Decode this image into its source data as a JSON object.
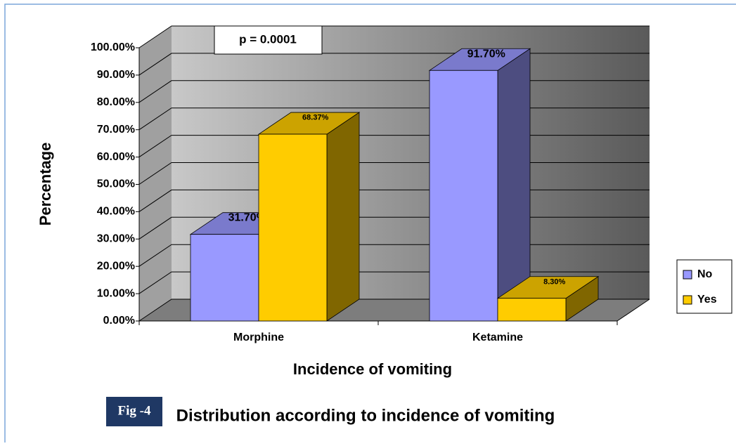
{
  "chart_data": {
    "type": "bar3d",
    "title": "Distribution according to incidence of vomiting",
    "figure_label": "Fig -4",
    "annotation": "p = 0.0001",
    "xlabel": "Incidence of vomiting",
    "ylabel": "Percentage",
    "categories": [
      "Morphine",
      "Ketamine"
    ],
    "series": [
      {
        "name": "No",
        "color": "#9999ff",
        "values": [
          31.7,
          91.7
        ],
        "value_labels": [
          "31.70%",
          "91.70%"
        ]
      },
      {
        "name": "Yes",
        "color": "#ffcc00",
        "values": [
          68.37,
          8.3
        ],
        "value_labels": [
          "68.37%",
          "8.30%"
        ]
      }
    ],
    "ylim": [
      0,
      100
    ],
    "yticks": [
      {
        "value": 0,
        "label": "0.00%"
      },
      {
        "value": 10,
        "label": "10.00%"
      },
      {
        "value": 20,
        "label": "20.00%"
      },
      {
        "value": 30,
        "label": "30.00%"
      },
      {
        "value": 40,
        "label": "40.00%"
      },
      {
        "value": 50,
        "label": "50.00%"
      },
      {
        "value": 60,
        "label": "60.00%"
      },
      {
        "value": 70,
        "label": "70.00%"
      },
      {
        "value": 80,
        "label": "80.00%"
      },
      {
        "value": 90,
        "label": "90.00%"
      },
      {
        "value": 100,
        "label": "100.00%"
      }
    ],
    "grid": true,
    "legend": "right"
  }
}
